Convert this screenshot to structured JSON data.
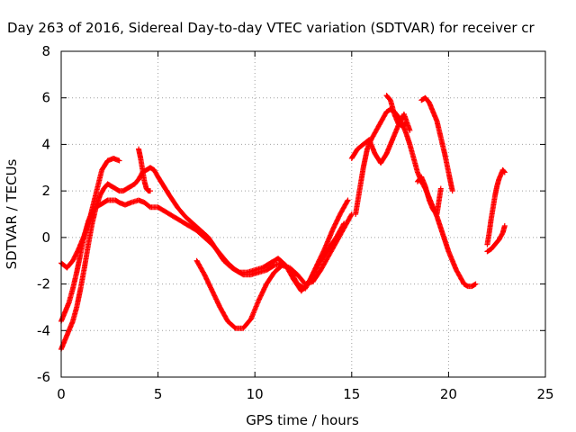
{
  "chart_data": {
    "type": "scatter",
    "title": "Day 263 of 2016, Sidereal Day-to-day VTEC variation (SDTVAR) for receiver cr",
    "xlabel": "GPS time / hours",
    "ylabel": "SDTVAR / TECUs",
    "xlim": [
      0,
      25
    ],
    "ylim": [
      -6,
      8
    ],
    "x_ticks": [
      0,
      5,
      10,
      15,
      20,
      25
    ],
    "y_ticks": [
      -6,
      -4,
      -2,
      0,
      2,
      4,
      6,
      8
    ],
    "x_tick_labels": [
      "0",
      "5",
      "10",
      "15",
      "20",
      "25"
    ],
    "y_tick_labels": [
      "-6",
      "-4",
      "-2",
      "0",
      "2",
      "4",
      "6",
      "8"
    ],
    "grid": true,
    "marker": "+",
    "color": "#ff0000",
    "series": [
      {
        "x": [
          0.0,
          0.2,
          0.4,
          0.6,
          0.8,
          1.0,
          1.2,
          1.4,
          1.6,
          1.8,
          2.0,
          2.2,
          2.4,
          2.6,
          2.8,
          3.0,
          3.2,
          3.4,
          3.6,
          3.8,
          4.0,
          4.2,
          4.4,
          4.6,
          4.8,
          5.0,
          5.3,
          5.6,
          6.0,
          6.4,
          6.8,
          7.2,
          7.6,
          8.0,
          8.4,
          8.8,
          9.2,
          9.6,
          10.0,
          10.4,
          10.8,
          11.2,
          11.6,
          12.0,
          12.4,
          12.8,
          13.2,
          13.6,
          14.0,
          14.4,
          14.8
        ],
        "y": [
          -4.8,
          -4.4,
          -4.0,
          -3.6,
          -3.0,
          -2.2,
          -1.3,
          -0.3,
          0.6,
          1.3,
          1.8,
          2.1,
          2.3,
          2.2,
          2.1,
          2.0,
          2.0,
          2.1,
          2.2,
          2.3,
          2.5,
          2.8,
          2.9,
          3.0,
          2.9,
          2.6,
          2.2,
          1.8,
          1.3,
          0.9,
          0.6,
          0.3,
          0.0,
          -0.5,
          -1.0,
          -1.3,
          -1.5,
          -1.5,
          -1.4,
          -1.3,
          -1.1,
          -0.9,
          -1.2,
          -1.8,
          -2.3,
          -1.9,
          -1.2,
          -0.5,
          0.3,
          1.0,
          1.6
        ]
      },
      {
        "x": [
          0.0,
          0.2,
          0.4,
          0.6,
          0.8,
          1.0,
          1.2,
          1.4,
          1.6,
          1.8,
          2.0,
          2.2,
          2.4,
          2.6,
          2.8,
          3.0,
          3.3,
          3.6,
          4.0,
          4.3,
          4.6,
          5.0,
          5.4,
          5.8,
          6.2,
          6.6,
          7.0,
          7.4,
          7.8,
          8.2,
          8.6,
          9.0,
          9.4,
          9.8,
          10.2,
          10.6,
          11.0,
          11.4,
          11.8,
          12.2,
          12.6,
          13.0,
          13.4,
          13.8,
          14.2,
          14.6
        ],
        "y": [
          -3.6,
          -3.2,
          -2.8,
          -2.2,
          -1.5,
          -0.7,
          0.1,
          0.7,
          1.1,
          1.3,
          1.4,
          1.5,
          1.6,
          1.6,
          1.6,
          1.5,
          1.4,
          1.5,
          1.6,
          1.5,
          1.3,
          1.3,
          1.1,
          0.9,
          0.7,
          0.5,
          0.3,
          0.0,
          -0.3,
          -0.7,
          -1.1,
          -1.4,
          -1.6,
          -1.6,
          -1.5,
          -1.4,
          -1.2,
          -1.1,
          -1.4,
          -2.0,
          -2.2,
          -1.6,
          -1.0,
          -0.5,
          0.0,
          0.6
        ]
      },
      {
        "x": [
          0.0,
          0.3,
          0.6,
          0.9,
          1.2,
          1.5,
          1.8,
          2.1,
          2.4,
          2.7,
          3.0
        ],
        "y": [
          -1.1,
          -1.3,
          -1.0,
          -0.5,
          0.1,
          0.9,
          1.9,
          2.9,
          3.3,
          3.4,
          3.3
        ]
      },
      {
        "x": [
          7.0,
          7.4,
          7.8,
          8.2,
          8.6,
          9.0,
          9.4,
          9.8,
          10.2,
          10.6,
          11.0,
          11.4,
          11.8,
          12.2,
          12.6,
          13.0,
          13.4,
          13.8,
          14.2,
          14.6,
          15.0
        ],
        "y": [
          -1.0,
          -1.6,
          -2.3,
          -3.0,
          -3.6,
          -3.9,
          -3.9,
          -3.5,
          -2.7,
          -2.0,
          -1.5,
          -1.2,
          -1.3,
          -1.6,
          -2.0,
          -1.9,
          -1.4,
          -0.8,
          -0.2,
          0.4,
          1.0
        ]
      },
      {
        "x": [
          15.2,
          15.4,
          15.6,
          15.8,
          16.0,
          16.2,
          16.4,
          16.6,
          16.8,
          17.0,
          17.2,
          17.4,
          17.6,
          17.8,
          18.0,
          18.2,
          18.4,
          18.6,
          18.8,
          19.0,
          19.2,
          19.4,
          19.6,
          19.8,
          20.0,
          20.2,
          20.4,
          20.6,
          20.8,
          21.0,
          21.2,
          21.4
        ],
        "y": [
          1.0,
          2.0,
          3.0,
          3.8,
          4.2,
          4.5,
          4.8,
          5.1,
          5.4,
          5.5,
          5.4,
          5.2,
          4.9,
          4.5,
          4.0,
          3.4,
          2.8,
          2.4,
          2.1,
          1.7,
          1.3,
          0.9,
          0.4,
          -0.1,
          -0.6,
          -1.0,
          -1.4,
          -1.7,
          -2.0,
          -2.1,
          -2.1,
          -2.0
        ]
      },
      {
        "x": [
          15.0,
          15.3,
          15.6,
          15.9,
          16.2,
          16.5,
          16.8,
          17.1,
          17.4,
          17.7,
          18.0
        ],
        "y": [
          3.4,
          3.8,
          4.0,
          4.2,
          3.6,
          3.2,
          3.6,
          4.2,
          4.8,
          5.3,
          4.6
        ]
      },
      {
        "x": [
          16.8,
          17.0,
          17.2,
          17.4,
          17.6,
          17.8
        ],
        "y": [
          6.1,
          5.9,
          5.3,
          4.9,
          4.8,
          4.9
        ]
      },
      {
        "x": [
          18.6,
          18.8,
          19.0,
          19.2,
          19.4,
          19.6,
          19.8,
          20.0,
          20.2
        ],
        "y": [
          5.9,
          6.0,
          5.8,
          5.4,
          5.0,
          4.3,
          3.6,
          2.8,
          2.0
        ]
      },
      {
        "x": [
          18.4,
          18.6,
          18.8,
          19.0,
          19.2,
          19.4,
          19.6
        ],
        "y": [
          2.4,
          2.6,
          2.2,
          1.6,
          1.2,
          1.0,
          2.1
        ]
      },
      {
        "x": [
          22.0,
          22.1,
          22.2,
          22.3,
          22.4,
          22.5,
          22.6,
          22.7,
          22.8,
          22.9
        ],
        "y": [
          -0.3,
          0.2,
          0.8,
          1.3,
          1.8,
          2.2,
          2.5,
          2.7,
          2.9,
          2.8
        ]
      },
      {
        "x": [
          22.0,
          22.2,
          22.4,
          22.6,
          22.8,
          22.9
        ],
        "y": [
          -0.6,
          -0.5,
          -0.3,
          -0.1,
          0.2,
          0.5
        ]
      },
      {
        "x": [
          4.0,
          4.1,
          4.2,
          4.3,
          4.4,
          4.5,
          4.6
        ],
        "y": [
          3.8,
          3.4,
          2.9,
          2.4,
          2.1,
          2.0,
          2.0
        ]
      }
    ]
  }
}
